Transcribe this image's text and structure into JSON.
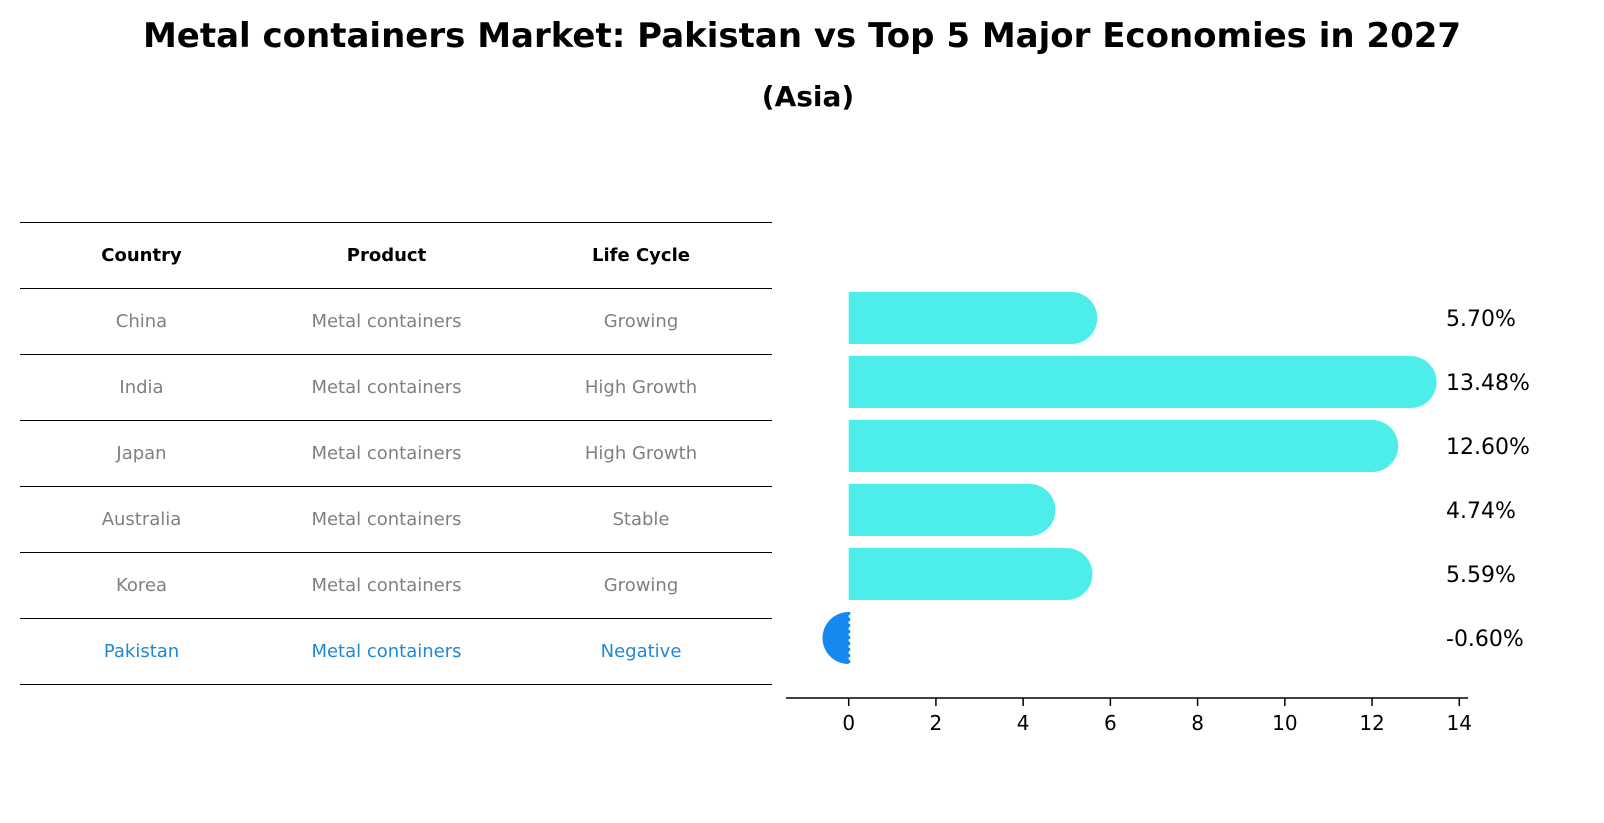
{
  "title": "Metal containers Market: Pakistan vs Top 5 Major Economies in 2027",
  "subtitle": "(Asia)",
  "table": {
    "headers": [
      "Country",
      "Product",
      "Life Cycle"
    ],
    "rows": [
      {
        "country": "China",
        "product": "Metal containers",
        "life_cycle": "Growing"
      },
      {
        "country": "India",
        "product": "Metal containers",
        "life_cycle": "High Growth"
      },
      {
        "country": "Japan",
        "product": "Metal containers",
        "life_cycle": "High Growth"
      },
      {
        "country": "Australia",
        "product": "Metal containers",
        "life_cycle": "Stable"
      },
      {
        "country": "Korea",
        "product": "Metal containers",
        "life_cycle": "Growing"
      },
      {
        "country": "Pakistan",
        "product": "Metal containers",
        "life_cycle": "Negative",
        "highlight": true
      }
    ]
  },
  "chart_data": {
    "type": "bar",
    "orientation": "horizontal",
    "categories": [
      "China",
      "India",
      "Japan",
      "Australia",
      "Korea",
      "Pakistan"
    ],
    "values": [
      5.7,
      13.48,
      12.6,
      4.74,
      5.59,
      -0.6
    ],
    "value_labels": [
      "5.70%",
      "13.48%",
      "12.60%",
      "4.74%",
      "5.59%",
      "-0.60%"
    ],
    "xlim": [
      -1.3,
      14.2
    ],
    "xticks": [
      0,
      2,
      4,
      6,
      8,
      10,
      12,
      14
    ],
    "colors": {
      "default": "#4deeea",
      "highlight": "#1589f0"
    },
    "highlight_category": "Pakistan"
  }
}
